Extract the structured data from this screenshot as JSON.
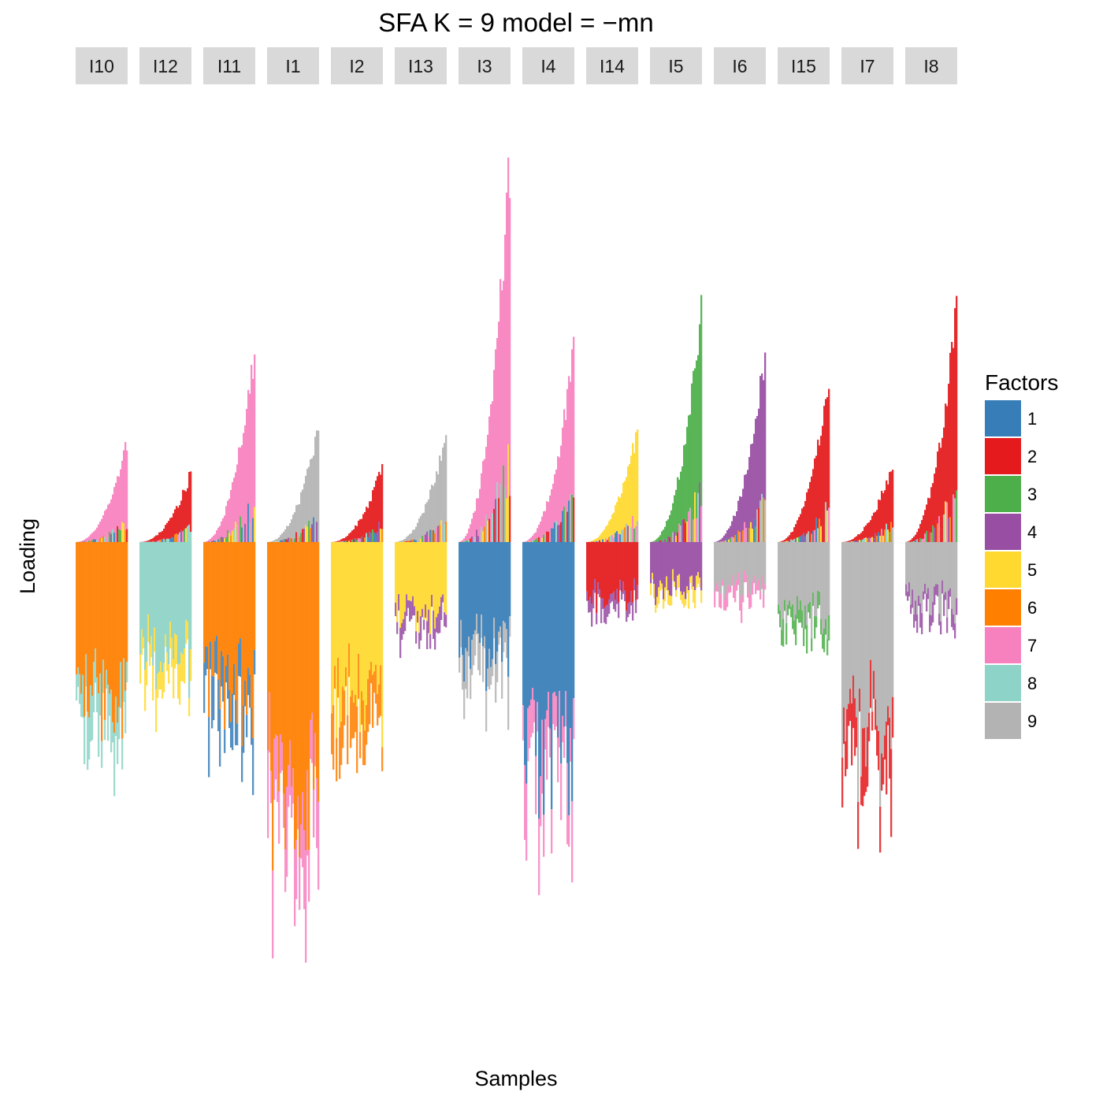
{
  "chart_data": {
    "type": "bar",
    "subtype": "stacked-bar-faceted",
    "title": "SFA K = 9 model =  −mn",
    "xlabel": "Samples",
    "ylabel": "Loading",
    "grid": false,
    "legend_position": "right",
    "legend_title": "Factors",
    "factors": [
      {
        "name": "1",
        "color": "#377EB8"
      },
      {
        "name": "2",
        "color": "#E41A1C"
      },
      {
        "name": "3",
        "color": "#4DAF4A"
      },
      {
        "name": "4",
        "color": "#984EA3"
      },
      {
        "name": "5",
        "color": "#FFD92F"
      },
      {
        "name": "6",
        "color": "#FF7F00"
      },
      {
        "name": "7",
        "color": "#F781BF"
      },
      {
        "name": "8",
        "color": "#8DD3C7"
      },
      {
        "name": "9",
        "color": "#B3B3B3"
      }
    ],
    "ylim": [
      -1.17,
      1.1
    ],
    "facets": [
      {
        "label": "I10",
        "pos_max": 0.29,
        "pos_factor": "7",
        "neg_max": 0.72,
        "neg_factor": "6",
        "neg_secondary": "8"
      },
      {
        "label": "I12",
        "pos_max": 0.2,
        "pos_factor": "2",
        "neg_max": 0.51,
        "neg_factor": "8",
        "neg_secondary": "5"
      },
      {
        "label": "I11",
        "pos_max": 0.56,
        "pos_factor": "7",
        "neg_max": 0.69,
        "neg_factor": "6",
        "neg_secondary": "1"
      },
      {
        "label": "I1",
        "pos_max": 0.33,
        "pos_factor": "9",
        "neg_max": 1.17,
        "neg_factor": "6",
        "neg_secondary": "7"
      },
      {
        "label": "I2",
        "pos_max": 0.22,
        "pos_factor": "2",
        "neg_max": 0.75,
        "neg_factor": "5",
        "neg_secondary": "6"
      },
      {
        "label": "I13",
        "pos_max": 0.31,
        "pos_factor": "9",
        "neg_max": 0.34,
        "neg_factor": "5",
        "neg_secondary": "4"
      },
      {
        "label": "I3",
        "pos_max": 1.1,
        "pos_factor": "7",
        "neg_max": 0.51,
        "neg_factor": "1",
        "neg_secondary": "9"
      },
      {
        "label": "I4",
        "pos_max": 0.55,
        "pos_factor": "7",
        "neg_max": 1.02,
        "neg_factor": "1",
        "neg_secondary": "7"
      },
      {
        "label": "I14",
        "pos_max": 0.33,
        "pos_factor": "5",
        "neg_max": 0.27,
        "neg_factor": "2",
        "neg_secondary": "4"
      },
      {
        "label": "I5",
        "pos_max": 0.66,
        "pos_factor": "3",
        "neg_max": 0.21,
        "neg_factor": "4",
        "neg_secondary": "5"
      },
      {
        "label": "I6",
        "pos_max": 0.55,
        "pos_factor": "4",
        "neg_max": 0.22,
        "neg_factor": "9",
        "neg_secondary": "7"
      },
      {
        "label": "I15",
        "pos_max": 0.46,
        "pos_factor": "2",
        "neg_max": 0.35,
        "neg_factor": "9",
        "neg_secondary": "3"
      },
      {
        "label": "I7",
        "pos_max": 0.23,
        "pos_factor": "2",
        "neg_max": 0.88,
        "neg_factor": "9",
        "neg_secondary": "2"
      },
      {
        "label": "I8",
        "pos_max": 0.67,
        "pos_factor": "2",
        "neg_max": 0.29,
        "neg_factor": "9",
        "neg_secondary": "4"
      }
    ]
  }
}
